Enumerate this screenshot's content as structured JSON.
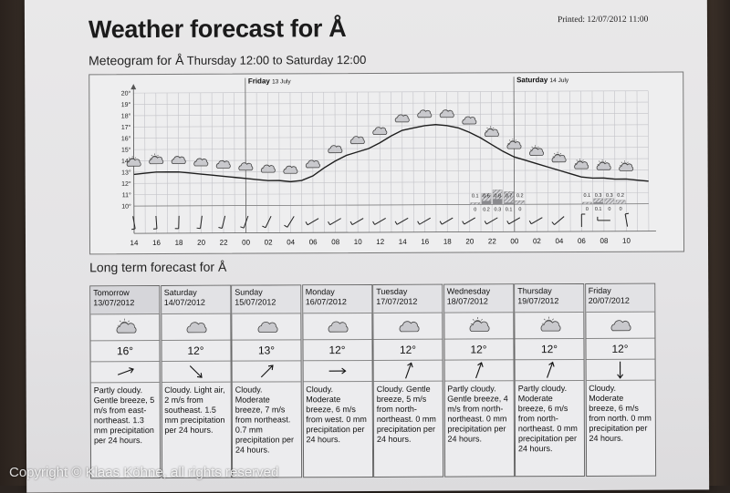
{
  "title": "Weather forecast for Å",
  "printed": "Printed: 12/07/2012 11:00",
  "meteogram": {
    "heading_prefix": "Meteogram for Å",
    "heading_range": "Thursday 12:00 to Saturday 12:00",
    "day_labels": [
      {
        "day": "Friday",
        "date": "13 July"
      },
      {
        "day": "Saturday",
        "date": "14 July"
      }
    ],
    "y_ticks": [
      "20°",
      "19°",
      "18°",
      "17°",
      "16°",
      "15°",
      "14°",
      "13°",
      "12°",
      "11°",
      "10°"
    ],
    "x_ticks": [
      "14",
      "16",
      "18",
      "20",
      "22",
      "00",
      "02",
      "04",
      "06",
      "08",
      "10",
      "12",
      "14",
      "16",
      "18",
      "20",
      "22",
      "00",
      "02",
      "04",
      "06",
      "08",
      "10"
    ],
    "precip_labels_top": [
      "0.1",
      "0.6",
      "0.8",
      "0.7",
      "0.2",
      "0.1",
      "0.3",
      "0.3",
      "0.2"
    ],
    "precip_labels_bottom": [
      "0",
      "0.2",
      "0.3",
      "0.1",
      "0",
      "0",
      "0.1",
      "0",
      "0"
    ]
  },
  "chart_data": {
    "type": "line",
    "x": [
      "14",
      "15",
      "16",
      "17",
      "18",
      "19",
      "20",
      "21",
      "22",
      "23",
      "00",
      "01",
      "02",
      "03",
      "04",
      "05",
      "06",
      "07",
      "08",
      "09",
      "10",
      "11",
      "12",
      "13",
      "14",
      "15",
      "16",
      "17",
      "18",
      "19",
      "20",
      "21",
      "22",
      "23",
      "00",
      "01",
      "02",
      "03",
      "04",
      "05",
      "06",
      "07",
      "08",
      "09",
      "10",
      "11",
      "12"
    ],
    "series": [
      {
        "values": [
          12.8,
          12.9,
          13.0,
          13.0,
          13.0,
          12.9,
          12.8,
          12.7,
          12.6,
          12.5,
          12.4,
          12.3,
          12.2,
          12.2,
          12.1,
          12.2,
          12.6,
          13.3,
          13.9,
          14.4,
          14.7,
          15.0,
          15.5,
          16.1,
          16.6,
          16.8,
          17.0,
          17.1,
          17.0,
          16.8,
          16.4,
          15.9,
          15.3,
          14.7,
          14.2,
          13.9,
          13.6,
          13.3,
          13.0,
          12.7,
          12.4,
          12.3,
          12.3,
          12.2,
          12.2,
          12.1,
          12.0
        ]
      }
    ],
    "ylim": [
      10,
      20
    ],
    "grid": true,
    "legend": "none",
    "precipitation_mm": {
      "hours": [
        "20",
        "21",
        "22",
        "23",
        "00",
        "06",
        "07",
        "08",
        "09"
      ],
      "min": [
        0,
        0.2,
        0.3,
        0.1,
        0,
        0,
        0.1,
        0,
        0
      ],
      "max": [
        0.1,
        0.6,
        0.8,
        0.7,
        0.2,
        0.1,
        0.3,
        0.3,
        0.2
      ]
    }
  },
  "long_term": {
    "heading": "Long term forecast for Å",
    "days": [
      {
        "day": "Tomorrow",
        "date": "13/07/2012",
        "icon": "partly-cloudy-icon",
        "temp": "16°",
        "wind_dir": "east-northeast",
        "desc": "Partly cloudy. Gentle breeze, 5 m/s from east-northeast. 1.3 mm precipitation per 24 hours."
      },
      {
        "day": "Saturday",
        "date": "14/07/2012",
        "icon": "cloud-icon",
        "temp": "12°",
        "wind_dir": "southeast",
        "desc": "Cloudy. Light air, 2 m/s from southeast. 1.5 mm precipitation per 24 hours."
      },
      {
        "day": "Sunday",
        "date": "15/07/2012",
        "icon": "cloud-icon",
        "temp": "13°",
        "wind_dir": "northeast",
        "desc": "Cloudy. Moderate breeze, 7 m/s from northeast. 0.7 mm precipitation per 24 hours."
      },
      {
        "day": "Monday",
        "date": "16/07/2012",
        "icon": "cloud-icon",
        "temp": "12°",
        "wind_dir": "west",
        "desc": "Cloudy. Moderate breeze, 6 m/s from west. 0 mm precipitation per 24 hours."
      },
      {
        "day": "Tuesday",
        "date": "17/07/2012",
        "icon": "cloud-icon",
        "temp": "12°",
        "wind_dir": "north-northeast",
        "desc": "Cloudy. Gentle breeze, 5 m/s from north-northeast. 0 mm precipitation per 24 hours."
      },
      {
        "day": "Wednesday",
        "date": "18/07/2012",
        "icon": "partly-cloudy-icon",
        "temp": "12°",
        "wind_dir": "north-northeast",
        "desc": "Partly cloudy. Gentle breeze, 4 m/s from north-northeast. 0 mm precipitation per 24 hours."
      },
      {
        "day": "Thursday",
        "date": "19/07/2012",
        "icon": "partly-cloudy-icon",
        "temp": "12°",
        "wind_dir": "north-northeast",
        "desc": "Partly cloudy. Moderate breeze, 6 m/s from north-northeast. 0 mm precipitation per 24 hours."
      },
      {
        "day": "Friday",
        "date": "20/07/2012",
        "icon": "cloud-icon",
        "temp": "12°",
        "wind_dir": "north",
        "desc": "Cloudy. Moderate breeze, 6 m/s from north. 0 mm precipitation per 24 hours."
      }
    ]
  },
  "copyright": "Copyright © Klaas Köhne, all rights reserved",
  "colors": {
    "paper": "#e7e6e8",
    "ink": "#1b1b1b",
    "grid": "#bdbdc2",
    "line": "#222222"
  }
}
